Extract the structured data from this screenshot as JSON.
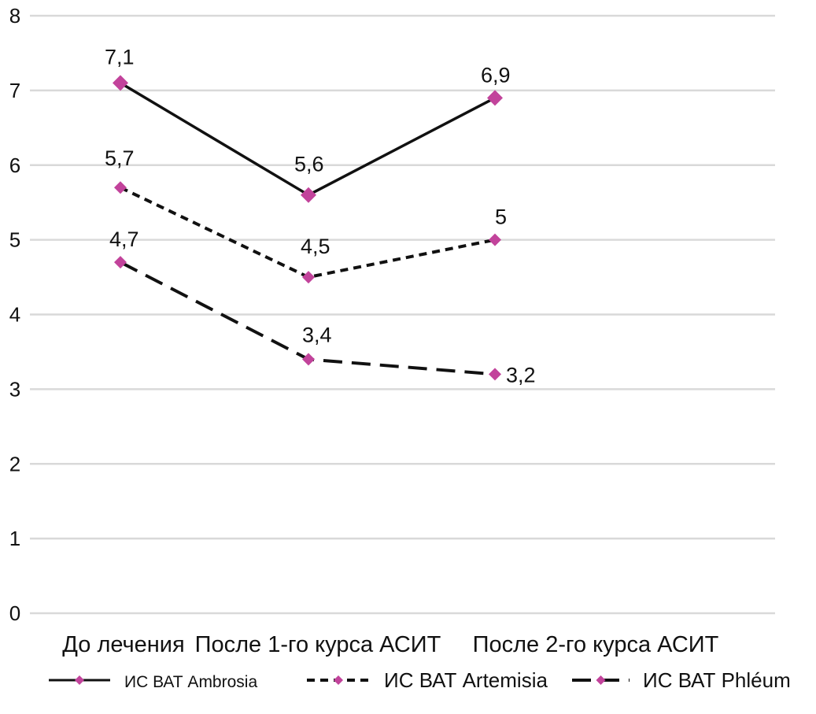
{
  "chart_data": {
    "type": "line",
    "title": "",
    "xlabel": "",
    "ylabel": "",
    "categories": [
      "До лечения",
      "После 1-го курса АСИТ",
      "После 2-го курса АСИТ"
    ],
    "ylim": [
      0,
      8
    ],
    "yticks": [
      "0",
      "1",
      "2",
      "3",
      "4",
      "5",
      "6",
      "7",
      "8"
    ],
    "grid": true,
    "legend_position": "bottom",
    "marker_color": "#c2439b",
    "line_color": "#111111",
    "gridline_color": "#d9d9d9",
    "series": [
      {
        "name": "ИС ВАТ Ambrosia",
        "line_style": "solid",
        "values": [
          7.1,
          5.6,
          6.9
        ],
        "labels": [
          "7,1",
          "5,6",
          "6,9"
        ]
      },
      {
        "name": "ИС ВАТ Artemisia",
        "line_style": "short-dash",
        "values": [
          5.7,
          4.5,
          5.0
        ],
        "labels": [
          "5,7",
          "4,5",
          "5"
        ]
      },
      {
        "name": "ИС ВАТ Phléum",
        "line_style": "long-dash",
        "values": [
          4.7,
          3.4,
          3.2
        ],
        "labels": [
          "4,7",
          "3,4",
          "3,2"
        ]
      }
    ]
  }
}
